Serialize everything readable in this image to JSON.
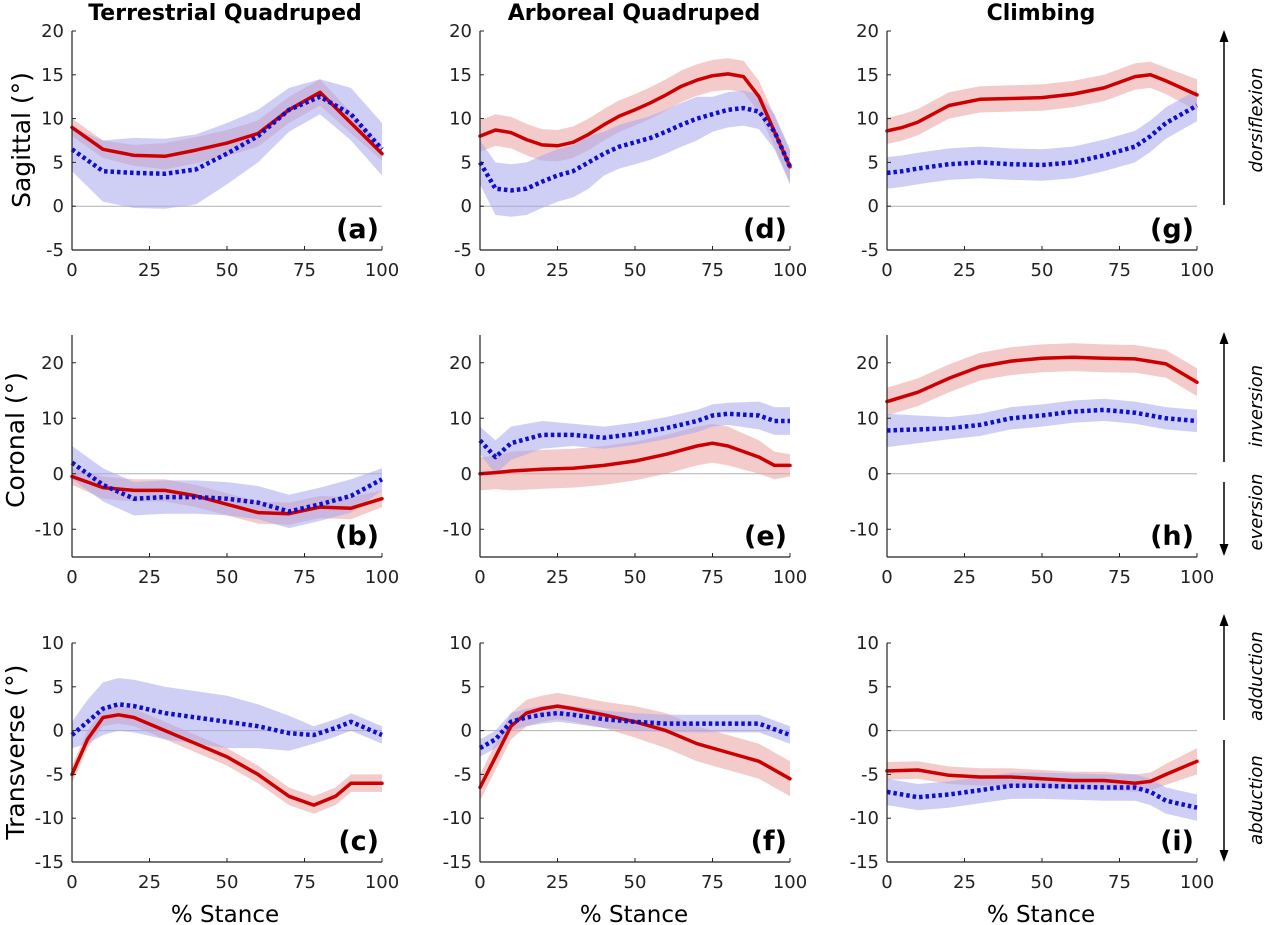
{
  "colors": {
    "red": "#cc0000",
    "red_band": "#eaa0a0",
    "blue": "#1010cc",
    "blue_band": "#a8a8ee"
  },
  "column_titles": [
    "Terrestrial Quadruped",
    "Arboreal Quadruped",
    "Climbing"
  ],
  "row_labels": [
    "Sagittal (°)",
    "Coronal (°)",
    "Transverse (°)"
  ],
  "x_label": "% Stance",
  "directions": {
    "dorsiflexion": "dorsiflexion",
    "inversion": "inversion",
    "eversion": "eversion",
    "adduction": "adduction",
    "abduction": "abduction"
  },
  "chart_data": [
    {
      "id": "a",
      "type": "line",
      "label": "(a)",
      "row": 0,
      "col": 0,
      "xlim": [
        0,
        100
      ],
      "ylim": [
        -5,
        20
      ],
      "xticks": [
        0,
        25,
        50,
        75,
        100
      ],
      "yticks": [
        -5,
        0,
        5,
        10,
        15,
        20
      ],
      "x": [
        0,
        10,
        20,
        30,
        40,
        50,
        60,
        70,
        80,
        90,
        100
      ],
      "series": [
        {
          "color": "red",
          "style": "solid",
          "values": [
            9,
            6.5,
            5.8,
            5.7,
            6.4,
            7.2,
            8.3,
            11,
            13,
            9.5,
            6
          ],
          "band": [
            1,
            1,
            1.2,
            1.5,
            1.5,
            1.5,
            1.5,
            1.5,
            1.5,
            1.2,
            0.8
          ]
        },
        {
          "color": "blue",
          "style": "dotted",
          "values": [
            6.5,
            4,
            3.8,
            3.7,
            4.2,
            6,
            8,
            11,
            12.5,
            10.5,
            6.5
          ],
          "band": [
            2.5,
            3.5,
            4,
            4,
            4,
            3.5,
            3,
            2.5,
            2,
            3,
            3
          ]
        }
      ]
    },
    {
      "id": "b",
      "type": "line",
      "label": "(b)",
      "row": 1,
      "col": 0,
      "xlim": [
        0,
        100
      ],
      "ylim": [
        -15,
        25
      ],
      "xticks": [
        0,
        25,
        50,
        75,
        100
      ],
      "yticks": [
        -10,
        0,
        10,
        20
      ],
      "x": [
        0,
        10,
        20,
        30,
        40,
        50,
        60,
        70,
        80,
        90,
        100
      ],
      "series": [
        {
          "color": "red",
          "style": "solid",
          "values": [
            -0.5,
            -2.5,
            -3,
            -3,
            -4,
            -5.5,
            -7,
            -7.2,
            -6,
            -6.2,
            -4.5
          ],
          "band": [
            1.5,
            2,
            2,
            2,
            2,
            2,
            2,
            2,
            2,
            2,
            1.5
          ]
        },
        {
          "color": "blue",
          "style": "dotted",
          "values": [
            2,
            -2,
            -4.5,
            -4.2,
            -4.2,
            -4.5,
            -5.2,
            -6.8,
            -5.5,
            -4,
            -1
          ],
          "band": [
            3,
            3,
            3,
            3,
            3,
            3,
            3,
            3,
            3,
            3,
            2
          ]
        }
      ]
    },
    {
      "id": "c",
      "type": "line",
      "label": "(c)",
      "row": 2,
      "col": 0,
      "xlim": [
        0,
        100
      ],
      "ylim": [
        -15,
        10
      ],
      "xticks": [
        0,
        25,
        50,
        75,
        100
      ],
      "yticks": [
        -15,
        -10,
        -5,
        0,
        5,
        10
      ],
      "x": [
        0,
        5,
        10,
        15,
        20,
        30,
        40,
        50,
        60,
        70,
        78,
        85,
        90,
        100
      ],
      "series": [
        {
          "color": "red",
          "style": "solid",
          "values": [
            -5,
            -1,
            1.5,
            1.8,
            1.5,
            0,
            -1.5,
            -3,
            -5,
            -7.5,
            -8.5,
            -7.5,
            -6,
            -6
          ],
          "band": [
            1,
            1,
            1,
            1,
            1,
            1,
            1,
            1,
            1,
            1,
            1,
            1,
            1,
            1
          ]
        },
        {
          "color": "blue",
          "style": "dotted",
          "values": [
            -0.5,
            1,
            2.5,
            3,
            2.8,
            2,
            1.5,
            1,
            0.5,
            -0.3,
            -0.5,
            0.3,
            1,
            -0.5
          ],
          "band": [
            1.5,
            2.5,
            3,
            3,
            3,
            3,
            3,
            3,
            2.5,
            2,
            1,
            1,
            1,
            1
          ]
        }
      ]
    },
    {
      "id": "d",
      "type": "line",
      "label": "(d)",
      "row": 0,
      "col": 1,
      "xlim": [
        0,
        100
      ],
      "ylim": [
        -5,
        20
      ],
      "xticks": [
        0,
        25,
        50,
        75,
        100
      ],
      "yticks": [
        -5,
        0,
        5,
        10,
        15,
        20
      ],
      "x": [
        0,
        5,
        10,
        15,
        20,
        25,
        30,
        35,
        40,
        45,
        50,
        55,
        60,
        65,
        70,
        75,
        80,
        85,
        90,
        95,
        100
      ],
      "series": [
        {
          "color": "red",
          "style": "solid",
          "values": [
            8,
            8.7,
            8.4,
            7.6,
            7,
            6.9,
            7.3,
            8.2,
            9.3,
            10.3,
            11,
            11.8,
            12.7,
            13.7,
            14.4,
            14.9,
            15.1,
            14.8,
            12.5,
            8.5,
            4.5
          ],
          "band": [
            1.8,
            1.8,
            1.8,
            1.8,
            1.8,
            1.8,
            1.8,
            1.8,
            1.8,
            1.8,
            1.8,
            1.8,
            1.8,
            1.8,
            1.8,
            1.8,
            1.8,
            1.8,
            1.8,
            1.8,
            1.8
          ]
        },
        {
          "color": "blue",
          "style": "dotted",
          "values": [
            5,
            2,
            1.8,
            2,
            2.8,
            3.5,
            4,
            5,
            6,
            6.8,
            7.3,
            7.8,
            8.5,
            9.3,
            10,
            10.5,
            11,
            11.2,
            10.8,
            8.5,
            4.5
          ],
          "band": [
            2.5,
            3,
            3,
            3,
            3,
            3,
            3,
            3,
            2.5,
            2.5,
            2.5,
            2.5,
            2.5,
            2.5,
            2.5,
            2,
            2,
            2,
            2,
            2,
            2
          ]
        }
      ]
    },
    {
      "id": "e",
      "type": "line",
      "label": "(e)",
      "row": 1,
      "col": 1,
      "xlim": [
        0,
        100
      ],
      "ylim": [
        -15,
        25
      ],
      "xticks": [
        0,
        25,
        50,
        75,
        100
      ],
      "yticks": [
        -10,
        0,
        10,
        20
      ],
      "x": [
        0,
        5,
        10,
        20,
        30,
        40,
        50,
        60,
        70,
        75,
        80,
        90,
        95,
        100
      ],
      "series": [
        {
          "color": "red",
          "style": "solid",
          "values": [
            0,
            0.2,
            0.5,
            0.8,
            1,
            1.5,
            2.3,
            3.5,
            5,
            5.5,
            5,
            3,
            1.5,
            1.5
          ],
          "band": [
            3,
            3,
            3.5,
            3.5,
            3.5,
            3.5,
            3.5,
            3.5,
            3.5,
            3.5,
            3.5,
            3,
            2.5,
            2
          ]
        },
        {
          "color": "blue",
          "style": "dotted",
          "values": [
            6,
            3,
            5.5,
            7,
            7,
            6.5,
            7.2,
            8.2,
            9.5,
            10.5,
            10.8,
            10.5,
            9.5,
            9.5
          ],
          "band": [
            2.5,
            3,
            3,
            2.5,
            2,
            2,
            2,
            2,
            2,
            2,
            2,
            2.5,
            2.5,
            2.5
          ]
        }
      ]
    },
    {
      "id": "f",
      "type": "line",
      "label": "(f)",
      "row": 2,
      "col": 1,
      "xlim": [
        0,
        100
      ],
      "ylim": [
        -15,
        10
      ],
      "xticks": [
        0,
        25,
        50,
        75,
        100
      ],
      "yticks": [
        -15,
        -10,
        -5,
        0,
        5,
        10
      ],
      "x": [
        0,
        5,
        10,
        15,
        20,
        25,
        30,
        40,
        50,
        60,
        70,
        80,
        90,
        100
      ],
      "series": [
        {
          "color": "red",
          "style": "solid",
          "values": [
            -6.5,
            -3,
            0.5,
            2,
            2.5,
            2.8,
            2.5,
            1.8,
            1,
            0,
            -1.5,
            -2.5,
            -3.5,
            -5.5
          ],
          "band": [
            1.5,
            1.5,
            1.5,
            1.5,
            1.5,
            1.5,
            1.5,
            1.5,
            1.8,
            2,
            2,
            2,
            2,
            2
          ]
        },
        {
          "color": "blue",
          "style": "dotted",
          "values": [
            -2,
            -1,
            1,
            1.5,
            1.8,
            2,
            1.8,
            1.3,
            1,
            0.8,
            0.8,
            0.8,
            0.8,
            -0.5
          ],
          "band": [
            1,
            1,
            1,
            1,
            1,
            1,
            1,
            1,
            1,
            1,
            1,
            1,
            1,
            1
          ]
        }
      ]
    },
    {
      "id": "g",
      "type": "line",
      "label": "(g)",
      "row": 0,
      "col": 2,
      "xlim": [
        0,
        100
      ],
      "ylim": [
        -5,
        20
      ],
      "xticks": [
        0,
        25,
        50,
        75,
        100
      ],
      "yticks": [
        -5,
        0,
        5,
        10,
        15,
        20
      ],
      "x": [
        0,
        5,
        10,
        20,
        30,
        40,
        50,
        60,
        70,
        80,
        85,
        90,
        100
      ],
      "series": [
        {
          "color": "red",
          "style": "solid",
          "values": [
            8.6,
            9,
            9.6,
            11.5,
            12.2,
            12.3,
            12.4,
            12.8,
            13.5,
            14.8,
            15,
            14.3,
            12.7
          ],
          "band": [
            1.5,
            1.5,
            1.5,
            1.5,
            1.5,
            1.5,
            1.5,
            1.5,
            1.5,
            1.5,
            1.5,
            1.5,
            1.8
          ]
        },
        {
          "color": "blue",
          "style": "dotted",
          "values": [
            3.8,
            4,
            4.3,
            4.8,
            5,
            4.8,
            4.7,
            5,
            5.8,
            6.8,
            8,
            9.5,
            11.5
          ],
          "band": [
            1.8,
            1.8,
            1.8,
            1.8,
            1.8,
            1.8,
            1.8,
            1.8,
            1.8,
            1.8,
            1.8,
            1.8,
            1.8
          ]
        }
      ]
    },
    {
      "id": "h",
      "type": "line",
      "label": "(h)",
      "row": 1,
      "col": 2,
      "xlim": [
        0,
        100
      ],
      "ylim": [
        -15,
        25
      ],
      "xticks": [
        0,
        25,
        50,
        75,
        100
      ],
      "yticks": [
        -10,
        0,
        10,
        20
      ],
      "x": [
        0,
        10,
        20,
        30,
        40,
        50,
        60,
        70,
        80,
        90,
        100
      ],
      "series": [
        {
          "color": "red",
          "style": "solid",
          "values": [
            13,
            14.7,
            17.2,
            19.3,
            20.3,
            20.8,
            21,
            20.8,
            20.7,
            19.8,
            16.5
          ],
          "band": [
            2.5,
            2.5,
            2.5,
            2.5,
            2.5,
            2.5,
            2.5,
            2.5,
            2.5,
            2.5,
            2.5
          ]
        },
        {
          "color": "blue",
          "style": "dotted",
          "values": [
            7.8,
            8,
            8.2,
            8.8,
            10,
            10.5,
            11.2,
            11.5,
            11,
            10,
            9.5
          ],
          "band": [
            3,
            2.5,
            2,
            2,
            2,
            2,
            2,
            2,
            2,
            2,
            2
          ]
        }
      ]
    },
    {
      "id": "i",
      "type": "line",
      "label": "(i)",
      "row": 2,
      "col": 2,
      "xlim": [
        0,
        100
      ],
      "ylim": [
        -15,
        10
      ],
      "xticks": [
        0,
        25,
        50,
        75,
        100
      ],
      "yticks": [
        -15,
        -10,
        -5,
        0,
        5,
        10
      ],
      "x": [
        0,
        10,
        20,
        30,
        40,
        50,
        60,
        70,
        80,
        85,
        90,
        100
      ],
      "series": [
        {
          "color": "red",
          "style": "solid",
          "values": [
            -4.6,
            -4.5,
            -5.1,
            -5.3,
            -5.3,
            -5.5,
            -5.7,
            -5.7,
            -6,
            -5.8,
            -5,
            -3.5
          ],
          "band": [
            1,
            1,
            1,
            1,
            1,
            1,
            1,
            1,
            1,
            1,
            1.2,
            1.5
          ]
        },
        {
          "color": "blue",
          "style": "dotted",
          "values": [
            -7,
            -7.6,
            -7.3,
            -6.8,
            -6.3,
            -6.3,
            -6.4,
            -6.5,
            -6.5,
            -7,
            -8,
            -8.8
          ],
          "band": [
            1.5,
            1.5,
            1.5,
            1.5,
            1.5,
            1.5,
            1.5,
            1.5,
            1.5,
            1.5,
            1.5,
            1.5
          ]
        }
      ]
    }
  ]
}
